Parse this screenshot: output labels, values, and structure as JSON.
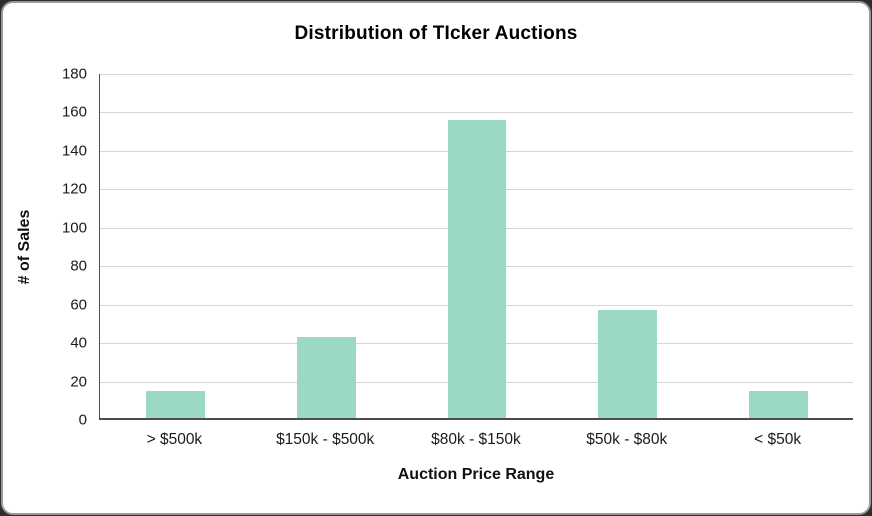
{
  "window": {
    "background_color": "#2e2e2e",
    "card_color": "#ffffff",
    "card_border_color": "#9a9a9a"
  },
  "chart_data": {
    "type": "bar",
    "title": "Distribution of TIcker Auctions",
    "xlabel": "Auction Price Range",
    "ylabel": "# of Sales",
    "categories": [
      "> $500k",
      "$150k - $500k",
      "$80k - $150k",
      "$50k - $80k",
      "< $50k"
    ],
    "values": [
      14,
      42,
      155,
      56,
      14
    ],
    "ylim": [
      0,
      180
    ],
    "ytick_step": 20,
    "grid": true,
    "legend": "none",
    "bar_color": "#9CD9C5",
    "gridline_color": "#D6D6D6",
    "axis_line_color": "#4d4d4d",
    "bar_width_fraction": 0.39
  }
}
